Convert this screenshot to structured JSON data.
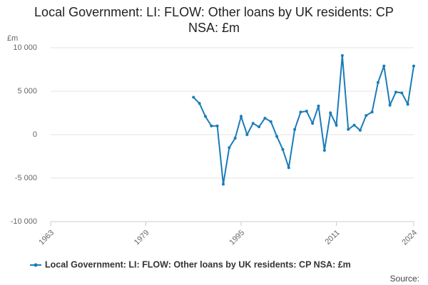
{
  "chart_data": {
    "type": "line",
    "title": "Local Government: LI: FLOW: Other loans by UK residents: CP NSA: £m",
    "y_label": "£m",
    "source": "Source:",
    "x": [
      1987,
      1988,
      1989,
      1990,
      1991,
      1992,
      1993,
      1994,
      1995,
      1996,
      1997,
      1998,
      1999,
      2000,
      2001,
      2002,
      2003,
      2004,
      2005,
      2006,
      2007,
      2008,
      2009,
      2010,
      2011,
      2012,
      2013,
      2014,
      2015,
      2016,
      2017,
      2018,
      2019,
      2020,
      2021,
      2022,
      2023,
      2024
    ],
    "series": [
      {
        "name": "Local Government: LI: FLOW: Other loans by UK residents: CP NSA: £m",
        "color": "#1a7cb8",
        "values": [
          4300,
          3600,
          2100,
          1000,
          1000,
          -5700,
          -1500,
          -400,
          2100,
          0,
          1300,
          900,
          1900,
          1500,
          -200,
          -1700,
          -3800,
          600,
          2600,
          2700,
          1300,
          3300,
          -1800,
          2500,
          1100,
          9100,
          600,
          1100,
          500,
          2200,
          2600,
          6000,
          7900,
          3400,
          4900,
          4800,
          3500,
          7900
        ]
      }
    ],
    "xlim": [
      1963,
      2024
    ],
    "xticks": [
      1963,
      1979,
      1995,
      2011,
      2024
    ],
    "ylim": [
      -10000,
      10000
    ],
    "yticks": [
      {
        "value": 10000,
        "label": "10 000"
      },
      {
        "value": 5000,
        "label": "5 000"
      },
      0,
      {
        "value": -5000,
        "label": "-5 000"
      },
      {
        "value": -10000,
        "label": "-10 000"
      }
    ],
    "grid": true
  }
}
